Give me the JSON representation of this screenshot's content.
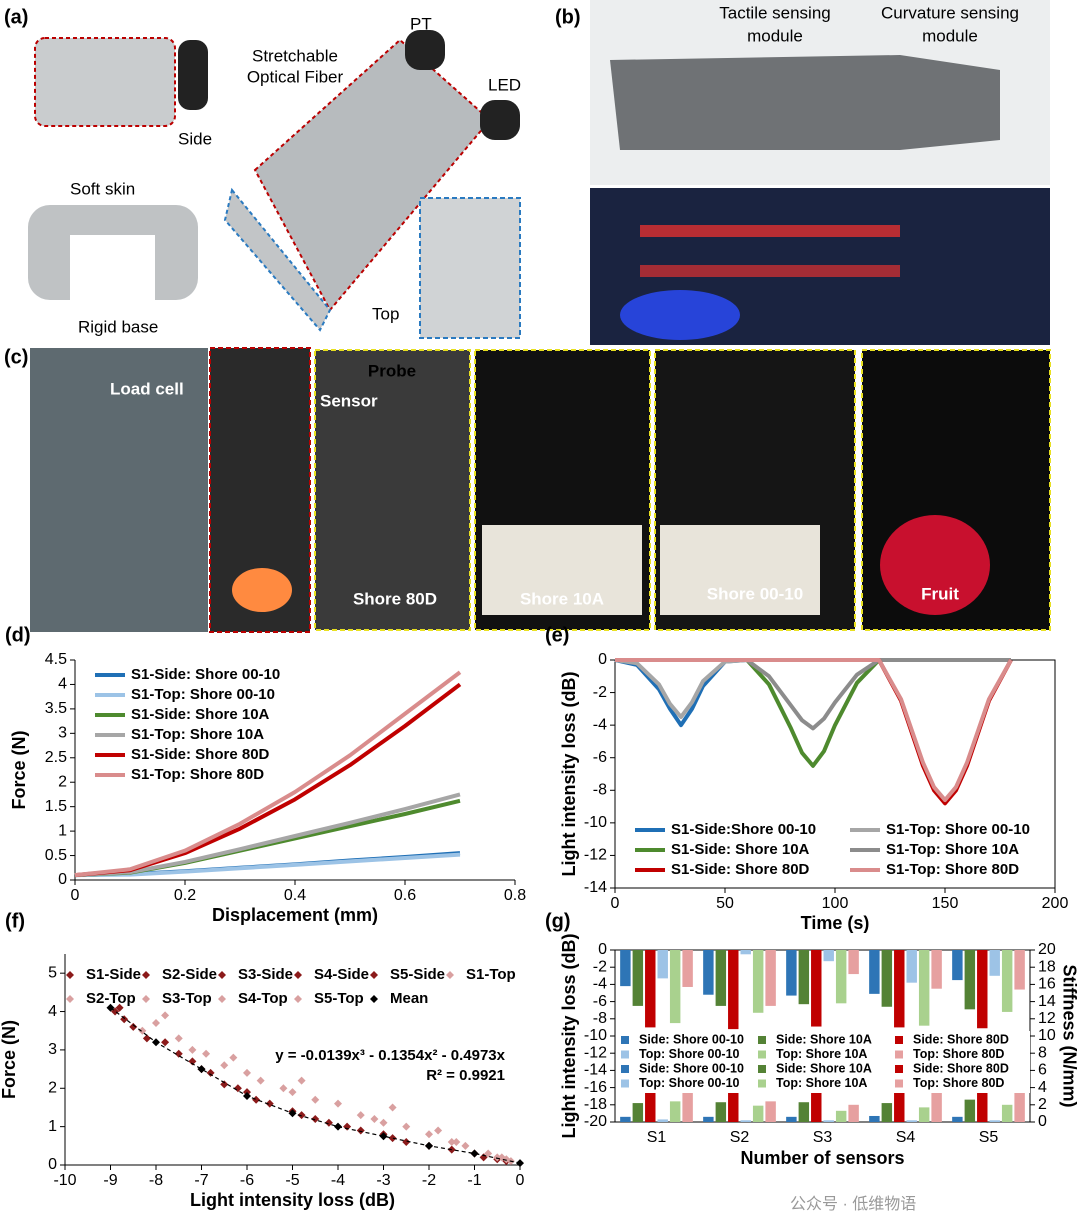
{
  "photo_panels": {
    "a": {
      "panel": "(a)",
      "pt": "PT",
      "fiber_label": [
        "Stretchable",
        "Optical Fiber"
      ],
      "led": "LED",
      "side": "Side",
      "soft_skin": "Soft skin",
      "rigid_base": "Rigid base",
      "top": "Top"
    },
    "b": {
      "panel": "(b)",
      "tactile": [
        "Tactile sensing",
        "module"
      ],
      "curvature": [
        "Curvature sensing",
        "module"
      ]
    },
    "c": {
      "panel": "(c)",
      "load_cell": "Load cell",
      "probe": "Probe",
      "sensor": "Sensor",
      "materials": [
        "Shore 80D",
        "Shore 10A",
        "Shore 00-10",
        "Fruit"
      ]
    }
  },
  "watermark": "公众号 · 低维物语",
  "chart_data": [
    {
      "type": "line",
      "panel": "(d)",
      "x_label": "Displacement (mm)",
      "y_label": "Force (N)",
      "x": [
        0,
        0.1,
        0.2,
        0.3,
        0.4,
        0.5,
        0.6,
        0.7
      ],
      "series": [
        {
          "name": "S1-Side: Shore 00-10",
          "color": "#1f6fb5",
          "values": [
            0.1,
            0.12,
            0.18,
            0.25,
            0.32,
            0.4,
            0.47,
            0.55
          ]
        },
        {
          "name": "S1-Top: Shore 00-10",
          "color": "#9cc3e6",
          "values": [
            0.1,
            0.11,
            0.17,
            0.24,
            0.31,
            0.38,
            0.45,
            0.52
          ]
        },
        {
          "name": "S1-Side: Shore 10A",
          "color": "#4e8a2e",
          "values": [
            0.1,
            0.15,
            0.35,
            0.6,
            0.85,
            1.1,
            1.35,
            1.62
          ]
        },
        {
          "name": "S1-Top: Shore 10A",
          "color": "#a6a6a6",
          "values": [
            0.1,
            0.16,
            0.37,
            0.63,
            0.9,
            1.17,
            1.45,
            1.75
          ]
        },
        {
          "name": "S1-Side: Shore 80D",
          "color": "#c00000",
          "values": [
            0.1,
            0.2,
            0.55,
            1.05,
            1.65,
            2.35,
            3.15,
            4.0
          ]
        },
        {
          "name": "S1-Top: Shore 80D",
          "color": "#d98c8c",
          "values": [
            0.1,
            0.22,
            0.6,
            1.15,
            1.8,
            2.55,
            3.4,
            4.25
          ]
        }
      ],
      "xlim": [
        0,
        0.8
      ],
      "xticks": [
        0,
        0.2,
        0.4,
        0.6,
        0.8
      ],
      "ylim": [
        0,
        4.5
      ],
      "yticks": [
        0,
        0.5,
        1,
        1.5,
        2,
        2.5,
        3,
        3.5,
        4,
        4.5
      ],
      "legend": "upper left"
    },
    {
      "type": "line",
      "panel": "(e)",
      "x_label": "Time (s)",
      "y_label": "Light intensity loss (dB)",
      "x": [
        0,
        10,
        20,
        25,
        30,
        35,
        40,
        50,
        60,
        70,
        80,
        85,
        90,
        95,
        100,
        110,
        120,
        130,
        140,
        145,
        150,
        155,
        160,
        170,
        180
      ],
      "series": [
        {
          "name": "S1-Side:Shore 00-10",
          "color": "#1f6fb5",
          "values": [
            0,
            -0.3,
            -1.8,
            -3.0,
            -4.0,
            -3.0,
            -1.6,
            -0.1,
            0,
            0,
            0,
            0,
            0,
            0,
            0,
            0,
            0,
            0,
            0,
            0,
            0,
            0,
            0,
            0,
            0
          ]
        },
        {
          "name": "S1-Top: Shore 00-10",
          "color": "#a6a6a6",
          "values": [
            0,
            -0.2,
            -1.5,
            -2.7,
            -3.5,
            -2.6,
            -1.3,
            -0.1,
            0,
            0,
            0,
            0,
            0,
            0,
            0,
            0,
            0,
            0,
            0,
            0,
            0,
            0,
            0,
            0,
            0
          ]
        },
        {
          "name": "S1-Side: Shore 10A",
          "color": "#4e8a2e",
          "values": [
            0,
            0,
            0,
            0,
            0,
            0,
            0,
            0,
            0,
            -1.5,
            -4.2,
            -5.7,
            -6.5,
            -5.6,
            -4.0,
            -1.4,
            0,
            0,
            0,
            0,
            0,
            0,
            0,
            0,
            0
          ]
        },
        {
          "name": "S1-Top: Shore 10A",
          "color": "#8c8c8c",
          "values": [
            0,
            0,
            0,
            0,
            0,
            0,
            0,
            0,
            0,
            -1.0,
            -2.8,
            -3.7,
            -4.2,
            -3.6,
            -2.6,
            -0.9,
            0,
            0,
            0,
            0,
            0,
            0,
            0,
            0,
            0
          ]
        },
        {
          "name": "S1-Side: Shore 80D",
          "color": "#c00000",
          "values": [
            0,
            0,
            0,
            0,
            0,
            0,
            0,
            0,
            0,
            0,
            0,
            0,
            0,
            0,
            0,
            0,
            0,
            -2.5,
            -6.5,
            -8.0,
            -8.8,
            -8.0,
            -6.5,
            -2.5,
            0
          ]
        },
        {
          "name": "S1-Top: Shore 80D",
          "color": "#d98c8c",
          "values": [
            0,
            0,
            0,
            0,
            0,
            0,
            0,
            0,
            0,
            0,
            0,
            0,
            0,
            0,
            0,
            0,
            0,
            -2.4,
            -6.3,
            -7.8,
            -8.6,
            -7.8,
            -6.3,
            -2.4,
            0
          ]
        }
      ],
      "xlim": [
        0,
        200
      ],
      "xticks": [
        0,
        50,
        100,
        150,
        200
      ],
      "ylim": [
        -14,
        0
      ],
      "yticks": [
        0,
        -2,
        -4,
        -6,
        -8,
        -10,
        -12,
        -14
      ],
      "legend": "lower center"
    },
    {
      "type": "scatter",
      "panel": "(f)",
      "x_label": "Light intensity loss (dB)",
      "y_label": "Force (N)",
      "annotations": [
        "y = -0.0139x³ - 0.1354x² - 0.4973x",
        "R² = 0.9921"
      ],
      "series": [
        {
          "name": "S1-Side",
          "color": "#8b1a1a",
          "x": [
            -8.9,
            -7.5,
            -6,
            -4.5,
            -3,
            -1.5
          ],
          "values": [
            4.0,
            2.9,
            1.9,
            1.2,
            0.8,
            0.4
          ]
        },
        {
          "name": "S2-Side",
          "color": "#8b1a1a",
          "x": [
            -8.7,
            -7.8,
            -6.5,
            -5,
            -3.5,
            -1
          ],
          "values": [
            3.8,
            3.2,
            2.1,
            1.4,
            0.9,
            0.3
          ]
        },
        {
          "name": "S3-Side",
          "color": "#8b1a1a",
          "x": [
            -8.5,
            -7.2,
            -5.8,
            -4.2,
            -2.5,
            -0.5
          ],
          "values": [
            3.6,
            2.7,
            1.7,
            1.1,
            0.6,
            0.15
          ]
        },
        {
          "name": "S4-Side",
          "color": "#8b1a1a",
          "x": [
            -8.8,
            -7,
            -6.2,
            -4.8,
            -2.8,
            -0.8
          ],
          "values": [
            4.1,
            2.5,
            2.0,
            1.3,
            0.7,
            0.2
          ]
        },
        {
          "name": "S5-Side",
          "color": "#8b1a1a",
          "x": [
            -8.2,
            -6.8,
            -5.5,
            -3.8,
            -2,
            -0.3
          ],
          "values": [
            3.3,
            2.4,
            1.6,
            1.0,
            0.5,
            0.1
          ]
        },
        {
          "name": "S1-Top",
          "color": "#d9a0a0",
          "x": [
            -8,
            -6.5,
            -5,
            -3.5,
            -2,
            -0.5
          ],
          "values": [
            3.7,
            2.6,
            1.9,
            1.3,
            0.8,
            0.2
          ]
        },
        {
          "name": "S2-Top",
          "color": "#d9a0a0",
          "x": [
            -7.5,
            -6,
            -4.5,
            -3,
            -1.5,
            -0.3
          ],
          "values": [
            3.3,
            2.4,
            1.7,
            1.1,
            0.6,
            0.15
          ]
        },
        {
          "name": "S3-Top",
          "color": "#d9a0a0",
          "x": [
            -7.8,
            -6.3,
            -4.8,
            -2.8,
            -1.8,
            -0.7
          ],
          "values": [
            3.9,
            2.8,
            2.2,
            1.5,
            0.9,
            0.3
          ]
        },
        {
          "name": "S4-Top",
          "color": "#d9a0a0",
          "x": [
            -7.2,
            -5.7,
            -4,
            -2.5,
            -1.2,
            -0.2
          ],
          "values": [
            3.0,
            2.2,
            1.6,
            1.0,
            0.5,
            0.1
          ]
        },
        {
          "name": "S5-Top",
          "color": "#d9a0a0",
          "x": [
            -8.3,
            -6.9,
            -5.2,
            -3.2,
            -1.4,
            -0.4
          ],
          "values": [
            3.5,
            2.9,
            2.0,
            1.2,
            0.6,
            0.2
          ]
        },
        {
          "name": "Mean",
          "color": "#000000",
          "line": "dashed",
          "x": [
            -9,
            -8,
            -7,
            -6,
            -5,
            -4,
            -3,
            -2,
            -1,
            0
          ],
          "values": [
            4.1,
            3.2,
            2.5,
            1.8,
            1.35,
            1.0,
            0.75,
            0.5,
            0.3,
            0.05
          ]
        }
      ],
      "xlim": [
        -10,
        0
      ],
      "xticks": [
        -10,
        -9,
        -8,
        -7,
        -6,
        -5,
        -4,
        -3,
        -2,
        -1,
        0
      ],
      "ylim": [
        0,
        5.5
      ],
      "yticks": [
        0,
        1,
        2,
        3,
        4,
        5
      ],
      "legend": "upper left"
    },
    {
      "type": "bar",
      "panel": "(g)",
      "x_label": "Number of sensors",
      "y_label": "Light intensity loss (dB)",
      "y2_label": "Stiffness (N/mm)",
      "categories": [
        "S1",
        "S2",
        "S3",
        "S4",
        "S5"
      ],
      "series": [
        {
          "name": "Side: Shore 00-10",
          "color": "#2e75b6",
          "values": [
            -4.2,
            -5.2,
            -5.3,
            -5.1,
            -3.5
          ]
        },
        {
          "name": "Side: Shore 10A",
          "color": "#548235",
          "values": [
            -6.5,
            -6.5,
            -6.3,
            -6.6,
            -6.9
          ]
        },
        {
          "name": "Side: Shore 80D",
          "color": "#c00000",
          "values": [
            -9.0,
            -9.2,
            -8.9,
            -9.0,
            -9.1
          ]
        },
        {
          "name": "Top: Shore 00-10",
          "color": "#9dc3e6",
          "values": [
            -3.3,
            -0.5,
            -1.3,
            -3.8,
            -3.0
          ]
        },
        {
          "name": "Top: Shore 10A",
          "color": "#a9d18e",
          "values": [
            -8.5,
            -7.3,
            -6.2,
            -8.8,
            -7.2
          ]
        },
        {
          "name": "Top: Shore 80D",
          "color": "#e6a0a0",
          "values": [
            -4.3,
            -6.5,
            -2.8,
            -4.5,
            -4.6
          ]
        },
        {
          "name": "Side: Shore 00-10",
          "color": "#2e75b6",
          "axis": "y2",
          "values": [
            0.6,
            0.6,
            0.6,
            0.7,
            0.6
          ]
        },
        {
          "name": "Side: Shore 10A",
          "color": "#548235",
          "axis": "y2",
          "values": [
            2.2,
            2.3,
            2.3,
            2.2,
            2.6
          ]
        },
        {
          "name": "Side: Shore 80D",
          "color": "#c00000",
          "axis": "y2",
          "values": [
            4.8,
            4.8,
            4.8,
            4.8,
            4.8
          ]
        },
        {
          "name": "Top: Shore 00-10",
          "color": "#9dc3e6",
          "axis": "y2",
          "values": [
            0.3,
            0.2,
            0.2,
            0.2,
            0.2
          ]
        },
        {
          "name": "Top: Shore 10A",
          "color": "#a9d18e",
          "axis": "y2",
          "values": [
            2.4,
            1.9,
            1.3,
            1.7,
            2.0
          ]
        },
        {
          "name": "Top: Shore 80D",
          "color": "#e6a0a0",
          "axis": "y2",
          "values": [
            4.8,
            2.4,
            2.0,
            4.8,
            3.9
          ]
        }
      ],
      "ylim": [
        -20,
        0
      ],
      "yticks": [
        0,
        -2,
        -4,
        -6,
        -8,
        -10,
        -12,
        -14,
        -16,
        -18,
        -20
      ],
      "y2lim": [
        0,
        20
      ],
      "y2ticks": [
        0,
        2,
        4,
        6,
        8,
        10,
        12,
        14,
        16,
        18,
        20
      ],
      "legend": "center"
    }
  ]
}
